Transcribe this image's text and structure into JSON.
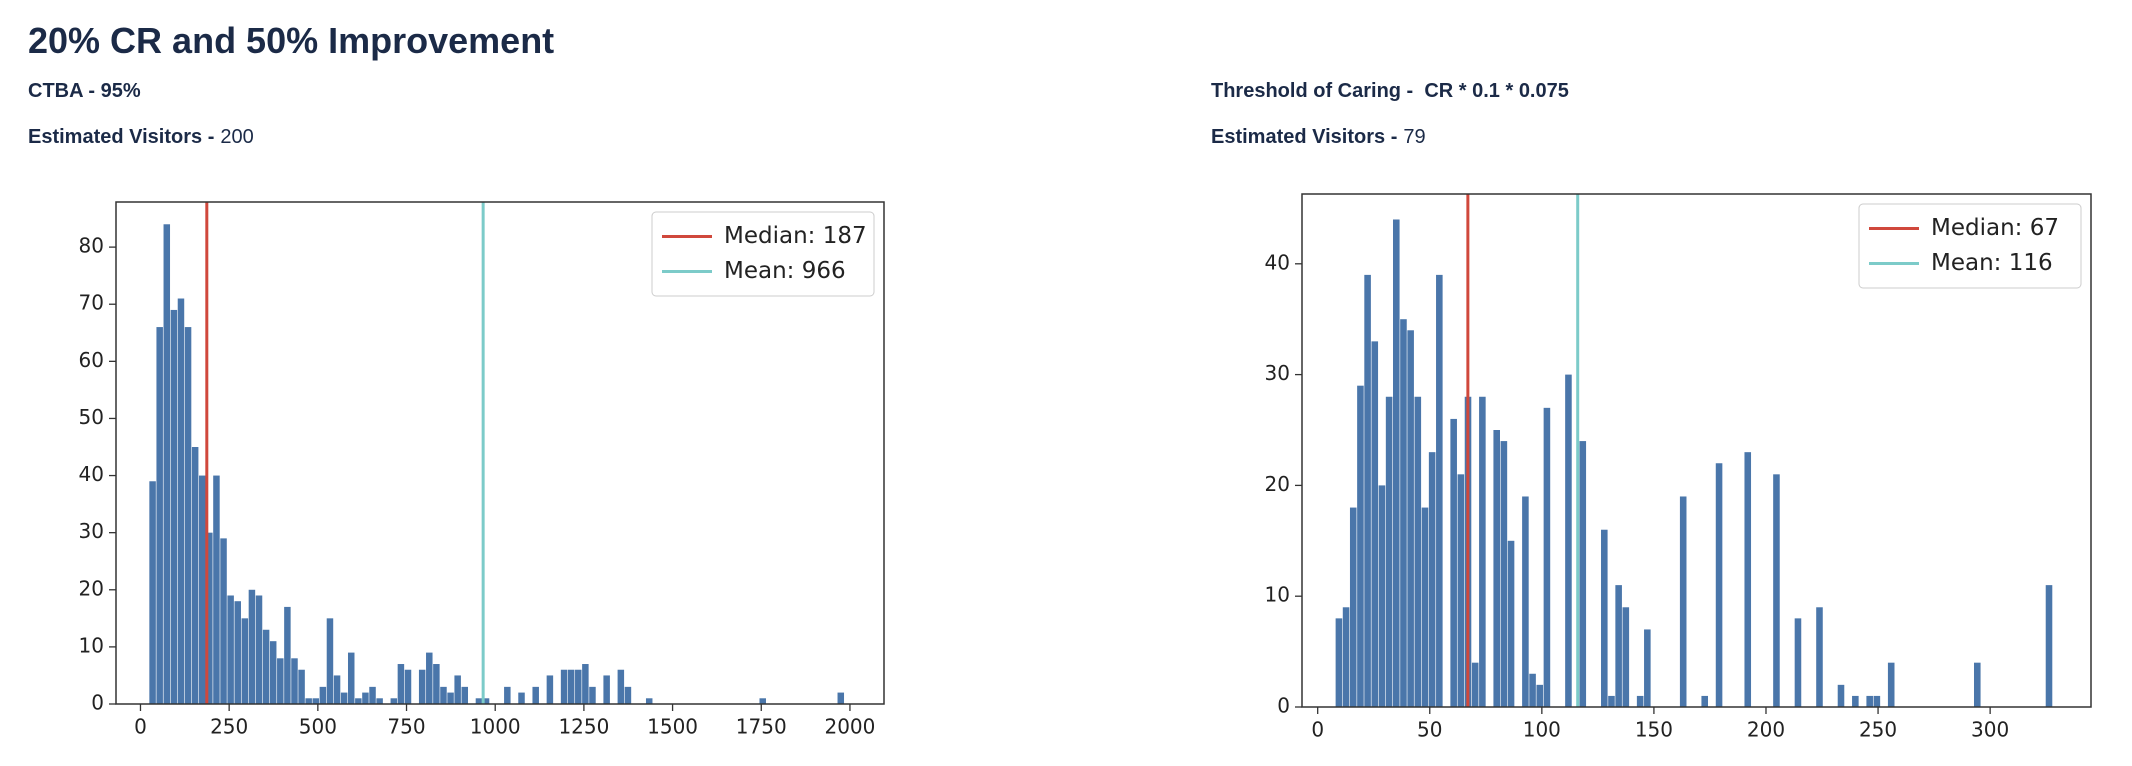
{
  "title": "20% CR and 50% Improvement",
  "left_info": {
    "ctba": "CTBA - 95%",
    "visitors_label": "Estimated Visitors -",
    "visitors": 200
  },
  "right_info": {
    "threshold": "Threshold of Caring -  CR * 0.1 * 0.075",
    "visitors_label": "Estimated Visitors -",
    "visitors": 79
  },
  "chart_data": [
    {
      "type": "histogram",
      "color": "#4a76aa",
      "legend": "upper right",
      "bins": [
        25,
        45,
        65,
        85,
        105,
        125,
        145,
        165,
        185,
        205,
        225,
        245,
        265,
        285,
        305,
        325,
        345,
        365,
        385,
        405,
        425,
        445,
        465,
        485,
        505,
        525,
        545,
        565,
        585,
        605,
        625,
        645,
        665,
        685,
        705,
        725,
        745,
        765,
        785,
        805,
        825,
        845,
        865,
        885,
        905,
        925,
        945,
        965,
        985,
        1005,
        1025,
        1045,
        1065,
        1085,
        1105,
        1125,
        1145,
        1165,
        1185,
        1205,
        1225,
        1245,
        1265,
        1285,
        1305,
        1325,
        1345,
        1365,
        1385,
        1405,
        1425,
        1445,
        1465,
        1485,
        1505,
        1525,
        1545,
        1565,
        1585,
        1605,
        1625,
        1645,
        1665,
        1685,
        1705,
        1725,
        1745,
        1765,
        1785,
        1805,
        1825,
        1845,
        1865,
        1885,
        1905,
        1925,
        1945,
        1965,
        1985,
        2005,
        2025
      ],
      "counts": [
        39,
        66,
        84,
        69,
        71,
        66,
        45,
        40,
        30,
        40,
        29,
        19,
        18,
        15,
        20,
        19,
        13,
        11,
        8,
        17,
        8,
        6,
        1,
        1,
        3,
        15,
        5,
        2,
        9,
        1,
        2,
        3,
        1,
        0,
        1,
        7,
        6,
        0,
        6,
        9,
        7,
        3,
        2,
        5,
        3,
        0,
        1,
        1,
        0,
        0,
        3,
        0,
        2,
        0,
        3,
        0,
        5,
        0,
        6,
        6,
        6,
        7,
        3,
        0,
        5,
        0,
        6,
        3,
        0,
        0,
        1,
        0,
        0,
        0,
        0,
        0,
        0,
        0,
        0,
        0,
        0,
        0,
        0,
        0,
        0,
        0,
        1,
        0,
        0,
        0,
        0,
        0,
        0,
        0,
        0,
        0,
        0,
        2,
        0,
        0
      ],
      "xlim": [
        -69,
        2096
      ],
      "xticks": [
        0,
        250,
        500,
        750,
        1000,
        1250,
        1500,
        1750,
        2000
      ],
      "ylim": [
        0,
        87.9
      ],
      "yticks": [
        0,
        10,
        20,
        30,
        40,
        50,
        60,
        70,
        80
      ],
      "vlines": [
        {
          "name": "Median: 187",
          "value": 187,
          "color": "#d0483c"
        },
        {
          "name": "Mean: 966",
          "value": 966,
          "color": "#7ccbc9"
        }
      ]
    },
    {
      "type": "histogram",
      "color": "#4a76aa",
      "legend": "upper right",
      "bins": [
        8,
        11.2,
        14.4,
        17.6,
        20.8,
        24,
        27.2,
        30.4,
        33.6,
        36.8,
        40,
        43.2,
        46.4,
        49.6,
        52.8,
        56,
        59.2,
        62.4,
        65.6,
        68.8,
        72,
        75.2,
        78.4,
        81.6,
        84.8,
        88,
        91.2,
        94.4,
        97.6,
        100.8,
        104,
        107.2,
        110.4,
        113.6,
        116.8,
        120,
        123.2,
        126.4,
        129.6,
        132.8,
        136,
        139.2,
        142.4,
        145.6,
        148.8,
        152,
        155.2,
        158.4,
        161.6,
        164.8,
        168,
        171.2,
        174.4,
        177.6,
        180.8,
        184,
        187.2,
        190.4,
        193.6,
        196.8,
        200,
        203.2,
        206.4,
        209.6,
        212.8,
        216,
        219.2,
        222.4,
        225.6,
        228.8,
        232,
        235.2,
        238.4,
        241.6,
        244.8,
        248,
        251.2,
        254.4,
        257.6,
        260.8,
        264,
        267.2,
        270.4,
        273.6,
        276.8,
        280,
        283.2,
        286.4,
        289.6,
        292.8,
        296,
        299.2,
        302.4,
        305.6,
        308.8,
        312,
        315.2,
        318.4,
        321.6,
        324.8,
        328
      ],
      "counts": [
        8,
        9,
        18,
        29,
        39,
        33,
        20,
        28,
        44,
        35,
        34,
        28,
        18,
        23,
        39,
        0,
        26,
        21,
        28,
        4,
        28,
        0,
        25,
        24,
        15,
        0,
        19,
        3,
        2,
        27,
        0,
        0,
        30,
        0,
        24,
        0,
        0,
        16,
        1,
        11,
        9,
        0,
        1,
        7,
        0,
        0,
        0,
        0,
        19,
        0,
        0,
        1,
        0,
        22,
        0,
        0,
        0,
        23,
        0,
        0,
        0,
        21,
        0,
        0,
        8,
        0,
        0,
        9,
        0,
        0,
        2,
        0,
        1,
        0,
        1,
        1,
        0,
        4,
        0,
        0,
        0,
        0,
        0,
        0,
        0,
        0,
        0,
        0,
        0,
        4,
        0,
        0,
        0,
        0,
        0,
        0,
        0,
        0,
        0,
        11
      ],
      "xlim": [
        -7,
        345
      ],
      "xticks": [
        0,
        50,
        100,
        150,
        200,
        250,
        300
      ],
      "ylim": [
        0,
        46.3
      ],
      "yticks": [
        0,
        10,
        20,
        30,
        40
      ],
      "vlines": [
        {
          "name": "Median: 67",
          "value": 67,
          "color": "#d0483c"
        },
        {
          "name": "Mean: 116",
          "value": 116,
          "color": "#7ccbc9"
        }
      ]
    }
  ]
}
